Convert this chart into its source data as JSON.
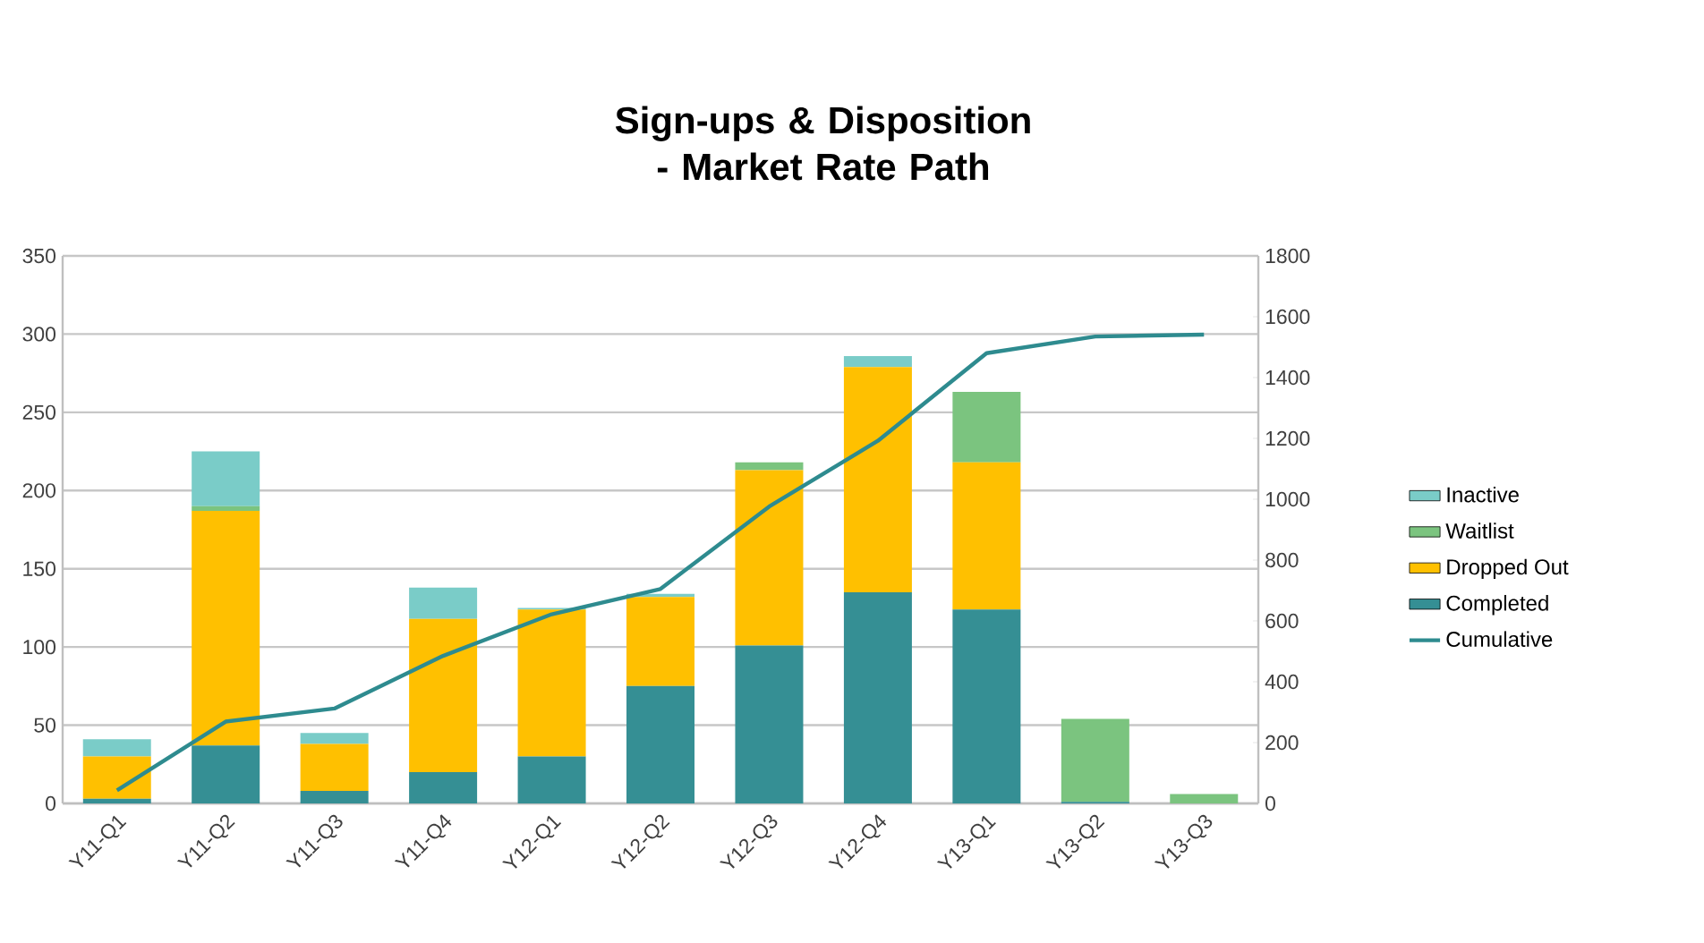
{
  "chart_data": {
    "type": "bar",
    "title": "Sign-ups & Disposition - Market Rate Path",
    "categories": [
      "Y11-Q1",
      "Y11-Q2",
      "Y11-Q3",
      "Y11-Q4",
      "Y12-Q1",
      "Y12-Q2",
      "Y12-Q3",
      "Y12-Q4",
      "Y13-Q1",
      "Y13-Q2",
      "Y13-Q3"
    ],
    "stacked": true,
    "series": [
      {
        "name": "Completed",
        "color": "#358f94",
        "values": [
          3,
          37,
          8,
          20,
          30,
          75,
          101,
          135,
          124,
          1,
          0
        ]
      },
      {
        "name": "Dropped Out",
        "color": "#ffc000",
        "values": [
          27,
          150,
          30,
          98,
          94,
          57,
          112,
          144,
          94,
          0,
          0
        ]
      },
      {
        "name": "Waitlist",
        "color": "#7bc47f",
        "values": [
          0,
          3,
          0,
          0,
          0,
          0,
          5,
          0,
          45,
          53,
          6
        ]
      },
      {
        "name": "Inactive",
        "color": "#7accc8",
        "values": [
          11,
          35,
          7,
          20,
          1,
          2,
          0,
          7,
          0,
          0,
          0
        ]
      },
      {
        "name": "Cumulative",
        "type": "line",
        "axis": "y2",
        "color": "#2e8b8f",
        "marker": "none",
        "line_style": "solid",
        "values": [
          43,
          269,
          312,
          485,
          622,
          705,
          976,
          1192,
          1480,
          1535,
          1541
        ]
      }
    ],
    "ylim": [
      0,
      350
    ],
    "yticks": [
      0,
      50,
      100,
      150,
      200,
      250,
      300,
      350
    ],
    "y2lim": [
      0,
      1800
    ],
    "y2ticks": [
      0,
      200,
      400,
      600,
      800,
      1000,
      1200,
      1400,
      1600,
      1800
    ],
    "grid": "y",
    "legend": "right"
  }
}
